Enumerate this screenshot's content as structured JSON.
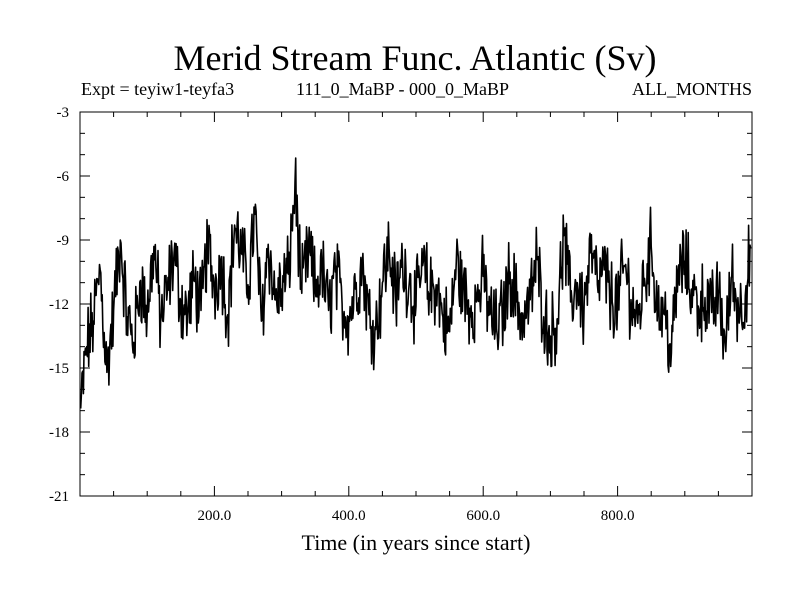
{
  "header": {
    "title": "Merid Stream Func. Atlantic (Sv)",
    "expt": "Expt = teyiw1-teyfa3",
    "period": "111_0_MaBP - 000_0_MaBP",
    "months": "ALL_MONTHS"
  },
  "chart_data": {
    "type": "line",
    "title": "Merid Stream Func. Atlantic (Sv)",
    "xlabel": "Time (in years since start)",
    "ylabel": "",
    "xlim": [
      0,
      1000
    ],
    "ylim": [
      -21,
      -3
    ],
    "xticks": [
      200,
      400,
      600,
      800
    ],
    "xtick_labels": [
      "200.0",
      "400.0",
      "600.0",
      "800.0"
    ],
    "yticks": [
      -3,
      -6,
      -9,
      -12,
      -15,
      -18,
      -21
    ],
    "ytick_labels": [
      "-3",
      "-6",
      "-9",
      "-12",
      "-15",
      "-18",
      "-21"
    ],
    "grid": false,
    "legend": "none",
    "series": [
      {
        "name": "teyiw1-teyfa3",
        "x": [
          1,
          10,
          20,
          30,
          40,
          50,
          60,
          70,
          80,
          90,
          100,
          110,
          120,
          130,
          140,
          150,
          160,
          170,
          180,
          190,
          200,
          210,
          220,
          230,
          240,
          250,
          260,
          270,
          280,
          290,
          300,
          310,
          320,
          330,
          340,
          350,
          360,
          370,
          380,
          390,
          400,
          410,
          420,
          430,
          440,
          450,
          460,
          470,
          480,
          490,
          500,
          510,
          520,
          530,
          540,
          550,
          560,
          570,
          580,
          590,
          600,
          610,
          620,
          630,
          640,
          650,
          660,
          670,
          680,
          690,
          700,
          710,
          720,
          730,
          740,
          750,
          760,
          770,
          780,
          790,
          800,
          810,
          820,
          830,
          840,
          850,
          860,
          870,
          880,
          890,
          900,
          910,
          920,
          930,
          940,
          950,
          960,
          970,
          980,
          990,
          998
        ],
        "y": [
          -16.9,
          -14.0,
          -12.8,
          -10.4,
          -15.2,
          -12.3,
          -9.0,
          -12.6,
          -13.8,
          -10.9,
          -12.5,
          -9.3,
          -12.8,
          -11.4,
          -9.6,
          -11.9,
          -12.5,
          -10.9,
          -12.3,
          -9.2,
          -11.2,
          -10.0,
          -12.5,
          -8.3,
          -9.6,
          -11.1,
          -7.8,
          -12.8,
          -9.2,
          -11.8,
          -11.3,
          -10.6,
          -6.3,
          -11.5,
          -9.4,
          -11.3,
          -10.4,
          -12.3,
          -10.5,
          -12.0,
          -12.6,
          -11.3,
          -10.2,
          -12.5,
          -13.2,
          -11.0,
          -9.4,
          -11.8,
          -10.1,
          -11.0,
          -12.1,
          -10.2,
          -11.5,
          -11.1,
          -12.6,
          -13.3,
          -10.0,
          -11.4,
          -12.2,
          -11.9,
          -10.7,
          -12.5,
          -13.2,
          -12.3,
          -10.5,
          -11.9,
          -12.8,
          -11.8,
          -9.9,
          -12.6,
          -13.5,
          -12.7,
          -8.8,
          -11.9,
          -11.0,
          -12.3,
          -9.6,
          -11.1,
          -10.4,
          -11.7,
          -12.0,
          -10.2,
          -11.8,
          -12.9,
          -10.8,
          -9.3,
          -12.2,
          -12.5,
          -14.3,
          -10.6,
          -10.0,
          -11.3,
          -12.1,
          -11.7,
          -12.4,
          -11.5,
          -13.8,
          -10.7,
          -12.3,
          -11.6,
          -9.4
        ]
      }
    ]
  }
}
